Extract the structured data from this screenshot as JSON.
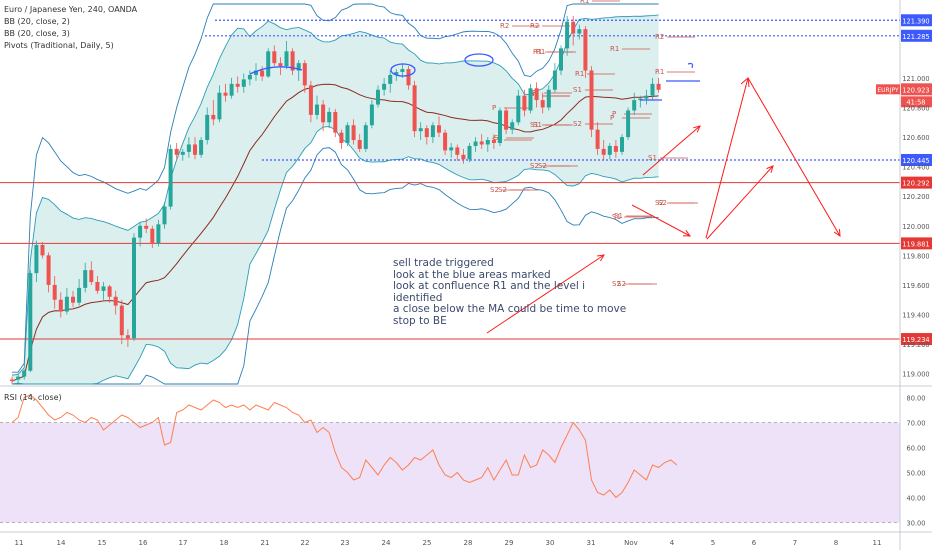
{
  "header": {
    "title": "Euro / Japanese Yen, 240, OANDA",
    "indicators": [
      "BB (20, close, 2)",
      "BB (20, close, 3)",
      "Pivots (Traditional, Daily, 5)"
    ],
    "rsi_title": "RSI (14, close)"
  },
  "price_tags": {
    "symbol": "EURJPY",
    "last": "120.923",
    "countdown": "41:58"
  },
  "annotation_lines": [
    "sell trade triggered",
    "look at the blue areas marked",
    "look at confluence R1 and the level i",
    "identified",
    "a close below the MA could be time to move",
    "stop to BE"
  ],
  "colors": {
    "up": "#26a69a",
    "down": "#ef5350",
    "ma": "#8b2b1e",
    "band_outer": "#2a7fb5",
    "band_inner": "#2a9db5",
    "band_fill": "#d5ecec",
    "hline_red": "#e53935",
    "hline_blue": "#3d5afe",
    "rsi_line": "#ff7f50",
    "rsi_zone": "#e7d6f7",
    "arrow": "#ff1a1a"
  },
  "chart_data": [
    {
      "type": "candlestick",
      "x_ticks": [
        "11",
        "14",
        "15",
        "16",
        "17",
        "18",
        "21",
        "22",
        "23",
        "24",
        "25",
        "28",
        "29",
        "30",
        "31",
        "Nov",
        "4",
        "5",
        "6",
        "7",
        "8",
        "11"
      ],
      "y_ticks": [
        "121.000",
        "120.800",
        "120.600",
        "120.400",
        "120.200",
        "120.000",
        "119.800",
        "119.600",
        "119.400",
        "119.200",
        "119.000"
      ],
      "ylim": [
        118.93,
        121.5
      ],
      "candles": [
        [
          118.96,
          118.98,
          118.93,
          118.95
        ],
        [
          118.96,
          119.0,
          118.93,
          118.98
        ],
        [
          118.98,
          119.03,
          118.96,
          119.02
        ],
        [
          119.02,
          119.7,
          119.01,
          119.68
        ],
        [
          119.68,
          119.9,
          119.62,
          119.87
        ],
        [
          119.87,
          119.89,
          119.78,
          119.8
        ],
        [
          119.8,
          119.82,
          119.55,
          119.6
        ],
        [
          119.6,
          119.66,
          119.44,
          119.5
        ],
        [
          119.5,
          119.55,
          119.38,
          119.42
        ],
        [
          119.42,
          119.58,
          119.4,
          119.52
        ],
        [
          119.52,
          119.56,
          119.45,
          119.48
        ],
        [
          119.48,
          119.64,
          119.46,
          119.58
        ],
        [
          119.58,
          119.75,
          119.55,
          119.7
        ],
        [
          119.7,
          119.76,
          119.6,
          119.62
        ],
        [
          119.62,
          119.66,
          119.54,
          119.56
        ],
        [
          119.56,
          119.62,
          119.5,
          119.59
        ],
        [
          119.59,
          119.6,
          119.48,
          119.52
        ],
        [
          119.52,
          119.56,
          119.4,
          119.46
        ],
        [
          119.46,
          119.5,
          119.2,
          119.26
        ],
        [
          119.26,
          119.3,
          119.18,
          119.24
        ],
        [
          119.24,
          119.95,
          119.22,
          119.92
        ],
        [
          119.92,
          120.02,
          119.86,
          120.0
        ],
        [
          120.0,
          120.05,
          119.95,
          119.98
        ],
        [
          119.98,
          120.0,
          119.85,
          119.88
        ],
        [
          119.88,
          120.04,
          119.86,
          120.01
        ],
        [
          120.01,
          120.16,
          119.98,
          120.13
        ],
        [
          120.13,
          120.55,
          120.11,
          120.52
        ],
        [
          120.52,
          120.56,
          120.45,
          120.48
        ],
        [
          120.48,
          120.52,
          120.44,
          120.5
        ],
        [
          120.5,
          120.6,
          120.46,
          120.55
        ],
        [
          120.55,
          120.6,
          120.45,
          120.48
        ],
        [
          120.48,
          120.6,
          120.46,
          120.58
        ],
        [
          120.58,
          120.8,
          120.55,
          120.75
        ],
        [
          120.75,
          120.85,
          120.68,
          120.72
        ],
        [
          120.72,
          120.95,
          120.7,
          120.9
        ],
        [
          120.9,
          120.96,
          120.84,
          120.88
        ],
        [
          120.88,
          121.0,
          120.86,
          120.96
        ],
        [
          120.96,
          121.01,
          120.9,
          120.94
        ],
        [
          120.94,
          121.03,
          120.9,
          120.99
        ],
        [
          120.99,
          121.05,
          120.95,
          121.02
        ],
        [
          121.02,
          121.1,
          120.98,
          121.05
        ],
        [
          121.05,
          121.08,
          120.98,
          121.01
        ],
        [
          121.01,
          121.2,
          121.0,
          121.18
        ],
        [
          121.18,
          121.22,
          121.08,
          121.1
        ],
        [
          121.1,
          121.14,
          121.02,
          121.08
        ],
        [
          121.08,
          121.25,
          121.06,
          121.18
        ],
        [
          121.18,
          121.2,
          121.02,
          121.05
        ],
        [
          121.05,
          121.12,
          120.98,
          121.1
        ],
        [
          121.1,
          121.12,
          120.9,
          120.95
        ],
        [
          120.95,
          120.98,
          120.7,
          120.75
        ],
        [
          120.75,
          120.88,
          120.72,
          120.82
        ],
        [
          120.82,
          120.85,
          120.64,
          120.7
        ],
        [
          120.7,
          120.8,
          120.66,
          120.77
        ],
        [
          120.77,
          120.79,
          120.6,
          120.63
        ],
        [
          120.63,
          120.65,
          120.52,
          120.56
        ],
        [
          120.56,
          120.7,
          120.54,
          120.68
        ],
        [
          120.68,
          120.72,
          120.55,
          120.58
        ],
        [
          120.58,
          120.62,
          120.5,
          120.52
        ],
        [
          120.52,
          120.7,
          120.5,
          120.68
        ],
        [
          120.68,
          120.85,
          120.66,
          120.82
        ],
        [
          120.82,
          120.95,
          120.8,
          120.92
        ],
        [
          120.92,
          121.0,
          120.88,
          120.96
        ],
        [
          120.96,
          121.05,
          120.9,
          121.02
        ],
        [
          121.02,
          121.06,
          120.98,
          121.04
        ],
        [
          121.04,
          121.1,
          121.0,
          121.06
        ],
        [
          121.06,
          121.08,
          120.92,
          120.95
        ],
        [
          120.95,
          120.98,
          120.6,
          120.64
        ],
        [
          120.64,
          120.7,
          120.58,
          120.66
        ],
        [
          120.66,
          120.68,
          120.55,
          120.6
        ],
        [
          120.6,
          120.7,
          120.56,
          120.68
        ],
        [
          120.68,
          120.74,
          120.6,
          120.63
        ],
        [
          120.63,
          120.65,
          120.48,
          120.51
        ],
        [
          120.51,
          120.56,
          120.46,
          120.53
        ],
        [
          120.53,
          120.55,
          120.44,
          120.48
        ],
        [
          120.48,
          120.52,
          120.42,
          120.45
        ],
        [
          120.45,
          120.56,
          120.43,
          120.54
        ],
        [
          120.54,
          120.6,
          120.5,
          120.57
        ],
        [
          120.57,
          120.62,
          120.52,
          120.55
        ],
        [
          120.55,
          120.6,
          120.5,
          120.58
        ],
        [
          120.58,
          120.62,
          120.52,
          120.56
        ],
        [
          120.56,
          120.8,
          120.54,
          120.78
        ],
        [
          120.78,
          120.8,
          120.62,
          120.65
        ],
        [
          120.65,
          120.72,
          120.62,
          120.7
        ],
        [
          120.7,
          120.92,
          120.68,
          120.88
        ],
        [
          120.88,
          120.92,
          120.74,
          120.78
        ],
        [
          120.78,
          120.96,
          120.76,
          120.93
        ],
        [
          120.93,
          120.97,
          120.8,
          120.85
        ],
        [
          120.85,
          120.9,
          120.76,
          120.8
        ],
        [
          120.8,
          120.95,
          120.78,
          120.92
        ],
        [
          120.92,
          121.1,
          120.9,
          121.05
        ],
        [
          121.05,
          121.22,
          121.02,
          121.2
        ],
        [
          121.2,
          121.42,
          121.15,
          121.38
        ],
        [
          121.38,
          121.42,
          121.22,
          121.3
        ],
        [
          121.3,
          121.36,
          121.26,
          121.33
        ],
        [
          121.33,
          121.35,
          121.0,
          121.05
        ],
        [
          121.05,
          121.08,
          120.6,
          120.65
        ],
        [
          120.65,
          120.7,
          120.48,
          120.52
        ],
        [
          120.52,
          120.58,
          120.44,
          120.48
        ],
        [
          120.48,
          120.56,
          120.45,
          120.54
        ],
        [
          120.54,
          120.58,
          120.46,
          120.5
        ],
        [
          120.5,
          120.62,
          120.48,
          120.6
        ],
        [
          120.6,
          120.8,
          120.58,
          120.78
        ],
        [
          120.78,
          120.9,
          120.75,
          120.85
        ],
        [
          120.85,
          120.88,
          120.8,
          120.86
        ],
        [
          120.86,
          120.92,
          120.82,
          120.88
        ],
        [
          120.88,
          121.0,
          120.85,
          120.96
        ],
        [
          120.96,
          121.0,
          120.9,
          120.92
        ]
      ],
      "horizontal_levels": [
        121.39,
        121.285,
        120.445,
        120.292,
        119.881,
        119.234
      ],
      "level_labels": [
        "121.390",
        "121.285",
        "120.445",
        "120.292",
        "119.881",
        "119.234"
      ],
      "pivot_labels": [
        "R2",
        "R1",
        "S1",
        "S2",
        "P",
        "S1",
        "S2",
        "R1",
        "P",
        "S1",
        "S2",
        "R2",
        "R1",
        "P",
        "S1",
        "S2",
        "R1",
        "P",
        "S1",
        "S2",
        "R2",
        "R1",
        "S1",
        "S2",
        "R1",
        "P",
        "P",
        "S1",
        "S2",
        "S2",
        "S1",
        "S2"
      ]
    },
    {
      "type": "line",
      "name": "RSI",
      "y_ticks": [
        "80.00",
        "70.00",
        "60.00",
        "50.00",
        "40.00",
        "30.00"
      ],
      "ylim": [
        27,
        83
      ],
      "values": [
        70,
        72,
        80,
        81,
        79,
        76,
        73,
        71,
        72,
        74,
        73,
        71,
        70,
        72,
        71,
        67,
        69,
        71,
        73,
        72,
        70,
        68,
        69,
        70,
        72,
        61,
        62,
        74,
        75,
        77,
        76,
        75,
        77,
        79,
        78,
        76,
        77,
        76,
        77,
        75,
        77,
        76,
        75,
        78,
        77,
        76,
        74,
        73,
        70,
        71,
        66,
        68,
        66,
        58,
        52,
        50,
        47,
        48,
        55,
        52,
        49,
        53,
        56,
        54,
        51,
        53,
        56,
        55,
        57,
        59,
        53,
        49,
        48,
        50,
        47,
        46,
        47,
        48,
        52,
        47,
        51,
        55,
        49,
        49,
        57,
        52,
        53,
        59,
        57,
        54,
        60,
        65,
        70,
        67,
        63,
        47,
        42,
        41,
        43,
        40,
        42,
        46,
        51,
        49,
        47,
        53,
        52,
        54,
        55,
        53
      ]
    }
  ]
}
